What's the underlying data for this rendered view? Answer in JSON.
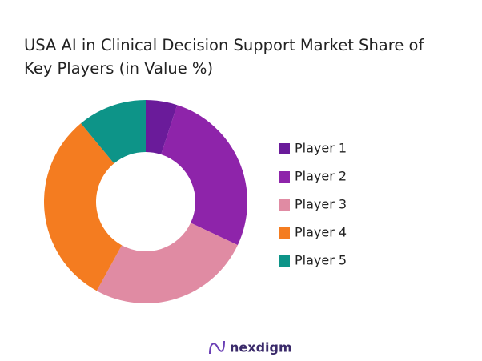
{
  "chart_data": {
    "type": "donut",
    "title": "USA AI in Clinical Decision Support Market Share of Key Players (in Value %)",
    "categories": [
      "Player 1",
      "Player 2",
      "Player 3",
      "Player 4",
      "Player 5"
    ],
    "values": [
      5,
      27,
      26,
      31,
      11
    ],
    "colors": [
      "#6a1b9a",
      "#8e24aa",
      "#e08ba3",
      "#f47c20",
      "#0d9488"
    ],
    "legend": "right"
  },
  "logo": "nexdigm"
}
